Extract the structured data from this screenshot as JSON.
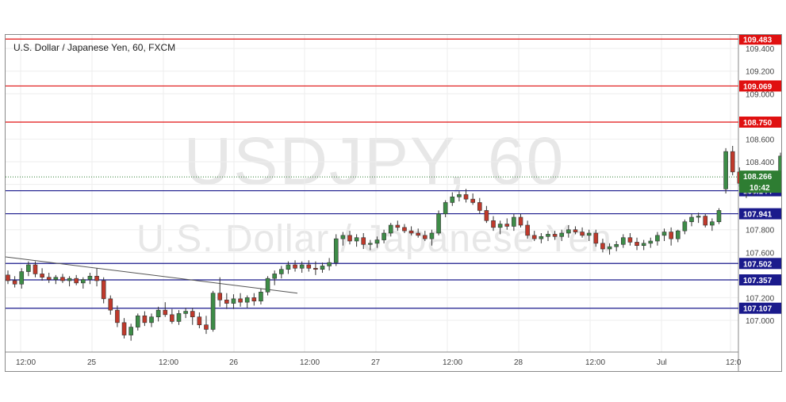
{
  "chart_title": "U.S. Dollar / Japanese Yen, 60, FXCM",
  "watermark": {
    "symbol": "USDJPY, 60",
    "name": "U.S. Dollar / Japanese Yen"
  },
  "colors": {
    "up": "#3d8c47",
    "down": "#c0392b",
    "resistance": "#e01010",
    "support": "#1a1a8c",
    "trend_line": "#555555",
    "last_price": "#2e7d32",
    "grid": "#eeeeee",
    "axis_text": "#444444"
  },
  "chart_data": {
    "type": "candlestick",
    "title": "U.S. Dollar / Japanese Yen, 60, FXCM",
    "ylim": [
      106.72,
      109.52
    ],
    "y_ticks": [
      "107.000",
      "107.200",
      "107.600",
      "107.800",
      "108.200",
      "108.400",
      "108.600",
      "109.000",
      "109.200",
      "109.400"
    ],
    "x_ticks": [
      "12:00",
      "25",
      "12:00",
      "26",
      "12:00",
      "27",
      "12:00",
      "28",
      "12:00",
      "Jul",
      "12:0"
    ],
    "resistance_levels": [
      "109.483",
      "109.069",
      "108.750"
    ],
    "support_levels": [
      "108.144",
      "107.941",
      "107.502",
      "107.357",
      "107.107"
    ],
    "last_price": "108.266",
    "countdown": "10:42",
    "trend_line": [
      [
        106.98,
        107.56
      ],
      [
        107.18,
        107.24
      ]
    ],
    "candles": [
      [
        107.4,
        107.44,
        107.32,
        107.35
      ],
      [
        107.35,
        107.39,
        107.29,
        107.32
      ],
      [
        107.32,
        107.46,
        107.28,
        107.43
      ],
      [
        107.43,
        107.52,
        107.39,
        107.49
      ],
      [
        107.49,
        107.52,
        107.38,
        107.41
      ],
      [
        107.41,
        107.46,
        107.35,
        107.38
      ],
      [
        107.38,
        107.42,
        107.33,
        107.36
      ],
      [
        107.36,
        107.4,
        107.32,
        107.38
      ],
      [
        107.38,
        107.41,
        107.33,
        107.35
      ],
      [
        107.35,
        107.39,
        107.3,
        107.37
      ],
      [
        107.37,
        107.4,
        107.31,
        107.33
      ],
      [
        107.33,
        107.38,
        107.28,
        107.36
      ],
      [
        107.36,
        107.42,
        107.32,
        107.39
      ],
      [
        107.39,
        107.46,
        107.3,
        107.35
      ],
      [
        107.35,
        107.38,
        107.15,
        107.19
      ],
      [
        107.19,
        107.22,
        107.05,
        107.09
      ],
      [
        107.09,
        107.13,
        106.94,
        106.98
      ],
      [
        106.98,
        107.02,
        106.84,
        106.87
      ],
      [
        106.87,
        106.97,
        106.82,
        106.94
      ],
      [
        106.94,
        107.06,
        106.91,
        107.04
      ],
      [
        107.04,
        107.08,
        106.95,
        106.98
      ],
      [
        106.98,
        107.06,
        106.94,
        107.03
      ],
      [
        107.03,
        107.12,
        106.99,
        107.09
      ],
      [
        107.09,
        107.16,
        107.03,
        107.05
      ],
      [
        107.05,
        107.1,
        106.97,
        106.99
      ],
      [
        106.99,
        107.09,
        106.96,
        107.06
      ],
      [
        107.06,
        107.11,
        107.02,
        107.08
      ],
      [
        107.08,
        107.11,
        106.96,
        107.03
      ],
      [
        107.03,
        107.07,
        106.93,
        106.96
      ],
      [
        106.96,
        107.04,
        106.88,
        106.92
      ],
      [
        106.92,
        107.26,
        106.9,
        107.24
      ],
      [
        107.24,
        107.38,
        107.12,
        107.18
      ],
      [
        107.18,
        107.24,
        107.1,
        107.15
      ],
      [
        107.15,
        107.23,
        107.1,
        107.19
      ],
      [
        107.19,
        107.24,
        107.12,
        107.16
      ],
      [
        107.16,
        107.22,
        107.11,
        107.2
      ],
      [
        107.2,
        107.24,
        107.13,
        107.17
      ],
      [
        107.17,
        107.28,
        107.14,
        107.25
      ],
      [
        107.25,
        107.39,
        107.22,
        107.37
      ],
      [
        107.37,
        107.44,
        107.31,
        107.41
      ],
      [
        107.41,
        107.48,
        107.37,
        107.45
      ],
      [
        107.45,
        107.52,
        107.41,
        107.49
      ],
      [
        107.49,
        107.53,
        107.43,
        107.46
      ],
      [
        107.46,
        107.52,
        107.42,
        107.49
      ],
      [
        107.49,
        107.53,
        107.43,
        107.46
      ],
      [
        107.46,
        107.52,
        107.4,
        107.45
      ],
      [
        107.45,
        107.51,
        107.42,
        107.48
      ],
      [
        107.48,
        107.55,
        107.44,
        107.51
      ],
      [
        107.51,
        107.76,
        107.48,
        107.72
      ],
      [
        107.72,
        107.78,
        107.66,
        107.75
      ],
      [
        107.75,
        107.79,
        107.67,
        107.7
      ],
      [
        107.7,
        107.76,
        107.65,
        107.73
      ],
      [
        107.73,
        107.77,
        107.63,
        107.67
      ],
      [
        107.67,
        107.71,
        107.62,
        107.68
      ],
      [
        107.68,
        107.74,
        107.64,
        107.71
      ],
      [
        107.71,
        107.8,
        107.68,
        107.77
      ],
      [
        107.77,
        107.86,
        107.74,
        107.84
      ],
      [
        107.84,
        107.88,
        107.79,
        107.82
      ],
      [
        107.82,
        107.85,
        107.77,
        107.79
      ],
      [
        107.79,
        107.83,
        107.75,
        107.77
      ],
      [
        107.77,
        107.81,
        107.73,
        107.75
      ],
      [
        107.75,
        107.79,
        107.7,
        107.72
      ],
      [
        107.72,
        107.8,
        107.66,
        107.77
      ],
      [
        107.77,
        107.97,
        107.75,
        107.94
      ],
      [
        107.94,
        108.06,
        107.91,
        108.04
      ],
      [
        108.04,
        108.13,
        108.01,
        108.09
      ],
      [
        108.09,
        108.14,
        108.05,
        108.11
      ],
      [
        108.11,
        108.16,
        108.04,
        108.07
      ],
      [
        108.07,
        108.12,
        108.02,
        108.04
      ],
      [
        108.04,
        108.08,
        107.94,
        107.97
      ],
      [
        107.97,
        108.01,
        107.86,
        107.88
      ],
      [
        107.88,
        107.92,
        107.79,
        107.82
      ],
      [
        107.82,
        107.88,
        107.76,
        107.85
      ],
      [
        107.85,
        107.9,
        107.8,
        107.83
      ],
      [
        107.83,
        107.94,
        107.79,
        107.91
      ],
      [
        107.91,
        107.94,
        107.82,
        107.84
      ],
      [
        107.84,
        107.88,
        107.72,
        107.75
      ],
      [
        107.75,
        107.79,
        107.7,
        107.72
      ],
      [
        107.72,
        107.77,
        107.68,
        107.74
      ],
      [
        107.74,
        107.79,
        107.7,
        107.76
      ],
      [
        107.76,
        107.79,
        107.71,
        107.74
      ],
      [
        107.74,
        107.8,
        107.7,
        107.77
      ],
      [
        107.77,
        107.84,
        107.73,
        107.8
      ],
      [
        107.8,
        107.83,
        107.76,
        107.78
      ],
      [
        107.78,
        107.82,
        107.73,
        107.75
      ],
      [
        107.75,
        107.8,
        107.7,
        107.77
      ],
      [
        107.77,
        107.8,
        107.65,
        107.68
      ],
      [
        107.68,
        107.72,
        107.6,
        107.63
      ],
      [
        107.63,
        107.68,
        107.58,
        107.65
      ],
      [
        107.65,
        107.7,
        107.61,
        107.67
      ],
      [
        107.67,
        107.76,
        107.64,
        107.73
      ],
      [
        107.73,
        107.77,
        107.66,
        107.69
      ],
      [
        107.69,
        107.73,
        107.62,
        107.66
      ],
      [
        107.66,
        107.71,
        107.62,
        107.68
      ],
      [
        107.68,
        107.73,
        107.64,
        107.7
      ],
      [
        107.7,
        107.78,
        107.66,
        107.75
      ],
      [
        107.75,
        107.81,
        107.7,
        107.78
      ],
      [
        107.78,
        107.82,
        107.66,
        107.72
      ],
      [
        107.72,
        107.8,
        107.69,
        107.79
      ],
      [
        107.79,
        107.89,
        107.76,
        107.87
      ],
      [
        107.87,
        107.94,
        107.83,
        107.91
      ],
      [
        107.91,
        107.95,
        107.86,
        107.92
      ],
      [
        107.92,
        107.94,
        107.82,
        107.84
      ],
      [
        107.84,
        107.9,
        107.79,
        107.87
      ],
      [
        107.87,
        107.99,
        107.85,
        107.97
      ],
      [
        108.16,
        108.52,
        108.12,
        108.49
      ],
      [
        108.49,
        108.54,
        108.28,
        108.31
      ],
      [
        108.31,
        108.35,
        108.18,
        108.21
      ],
      [
        108.21,
        108.24,
        108.08,
        108.13
      ],
      [
        108.13,
        108.22,
        108.1,
        108.19
      ],
      [
        108.19,
        108.26,
        108.16,
        108.24
      ],
      [
        108.24,
        108.29,
        108.2,
        108.26
      ],
      [
        108.26,
        108.32,
        108.2,
        108.29
      ],
      [
        108.29,
        108.48,
        108.26,
        108.45
      ],
      [
        108.45,
        108.54,
        108.36,
        108.38
      ],
      [
        108.38,
        108.42,
        108.25,
        108.28
      ],
      [
        108.28,
        108.31,
        108.23,
        108.266
      ]
    ]
  }
}
